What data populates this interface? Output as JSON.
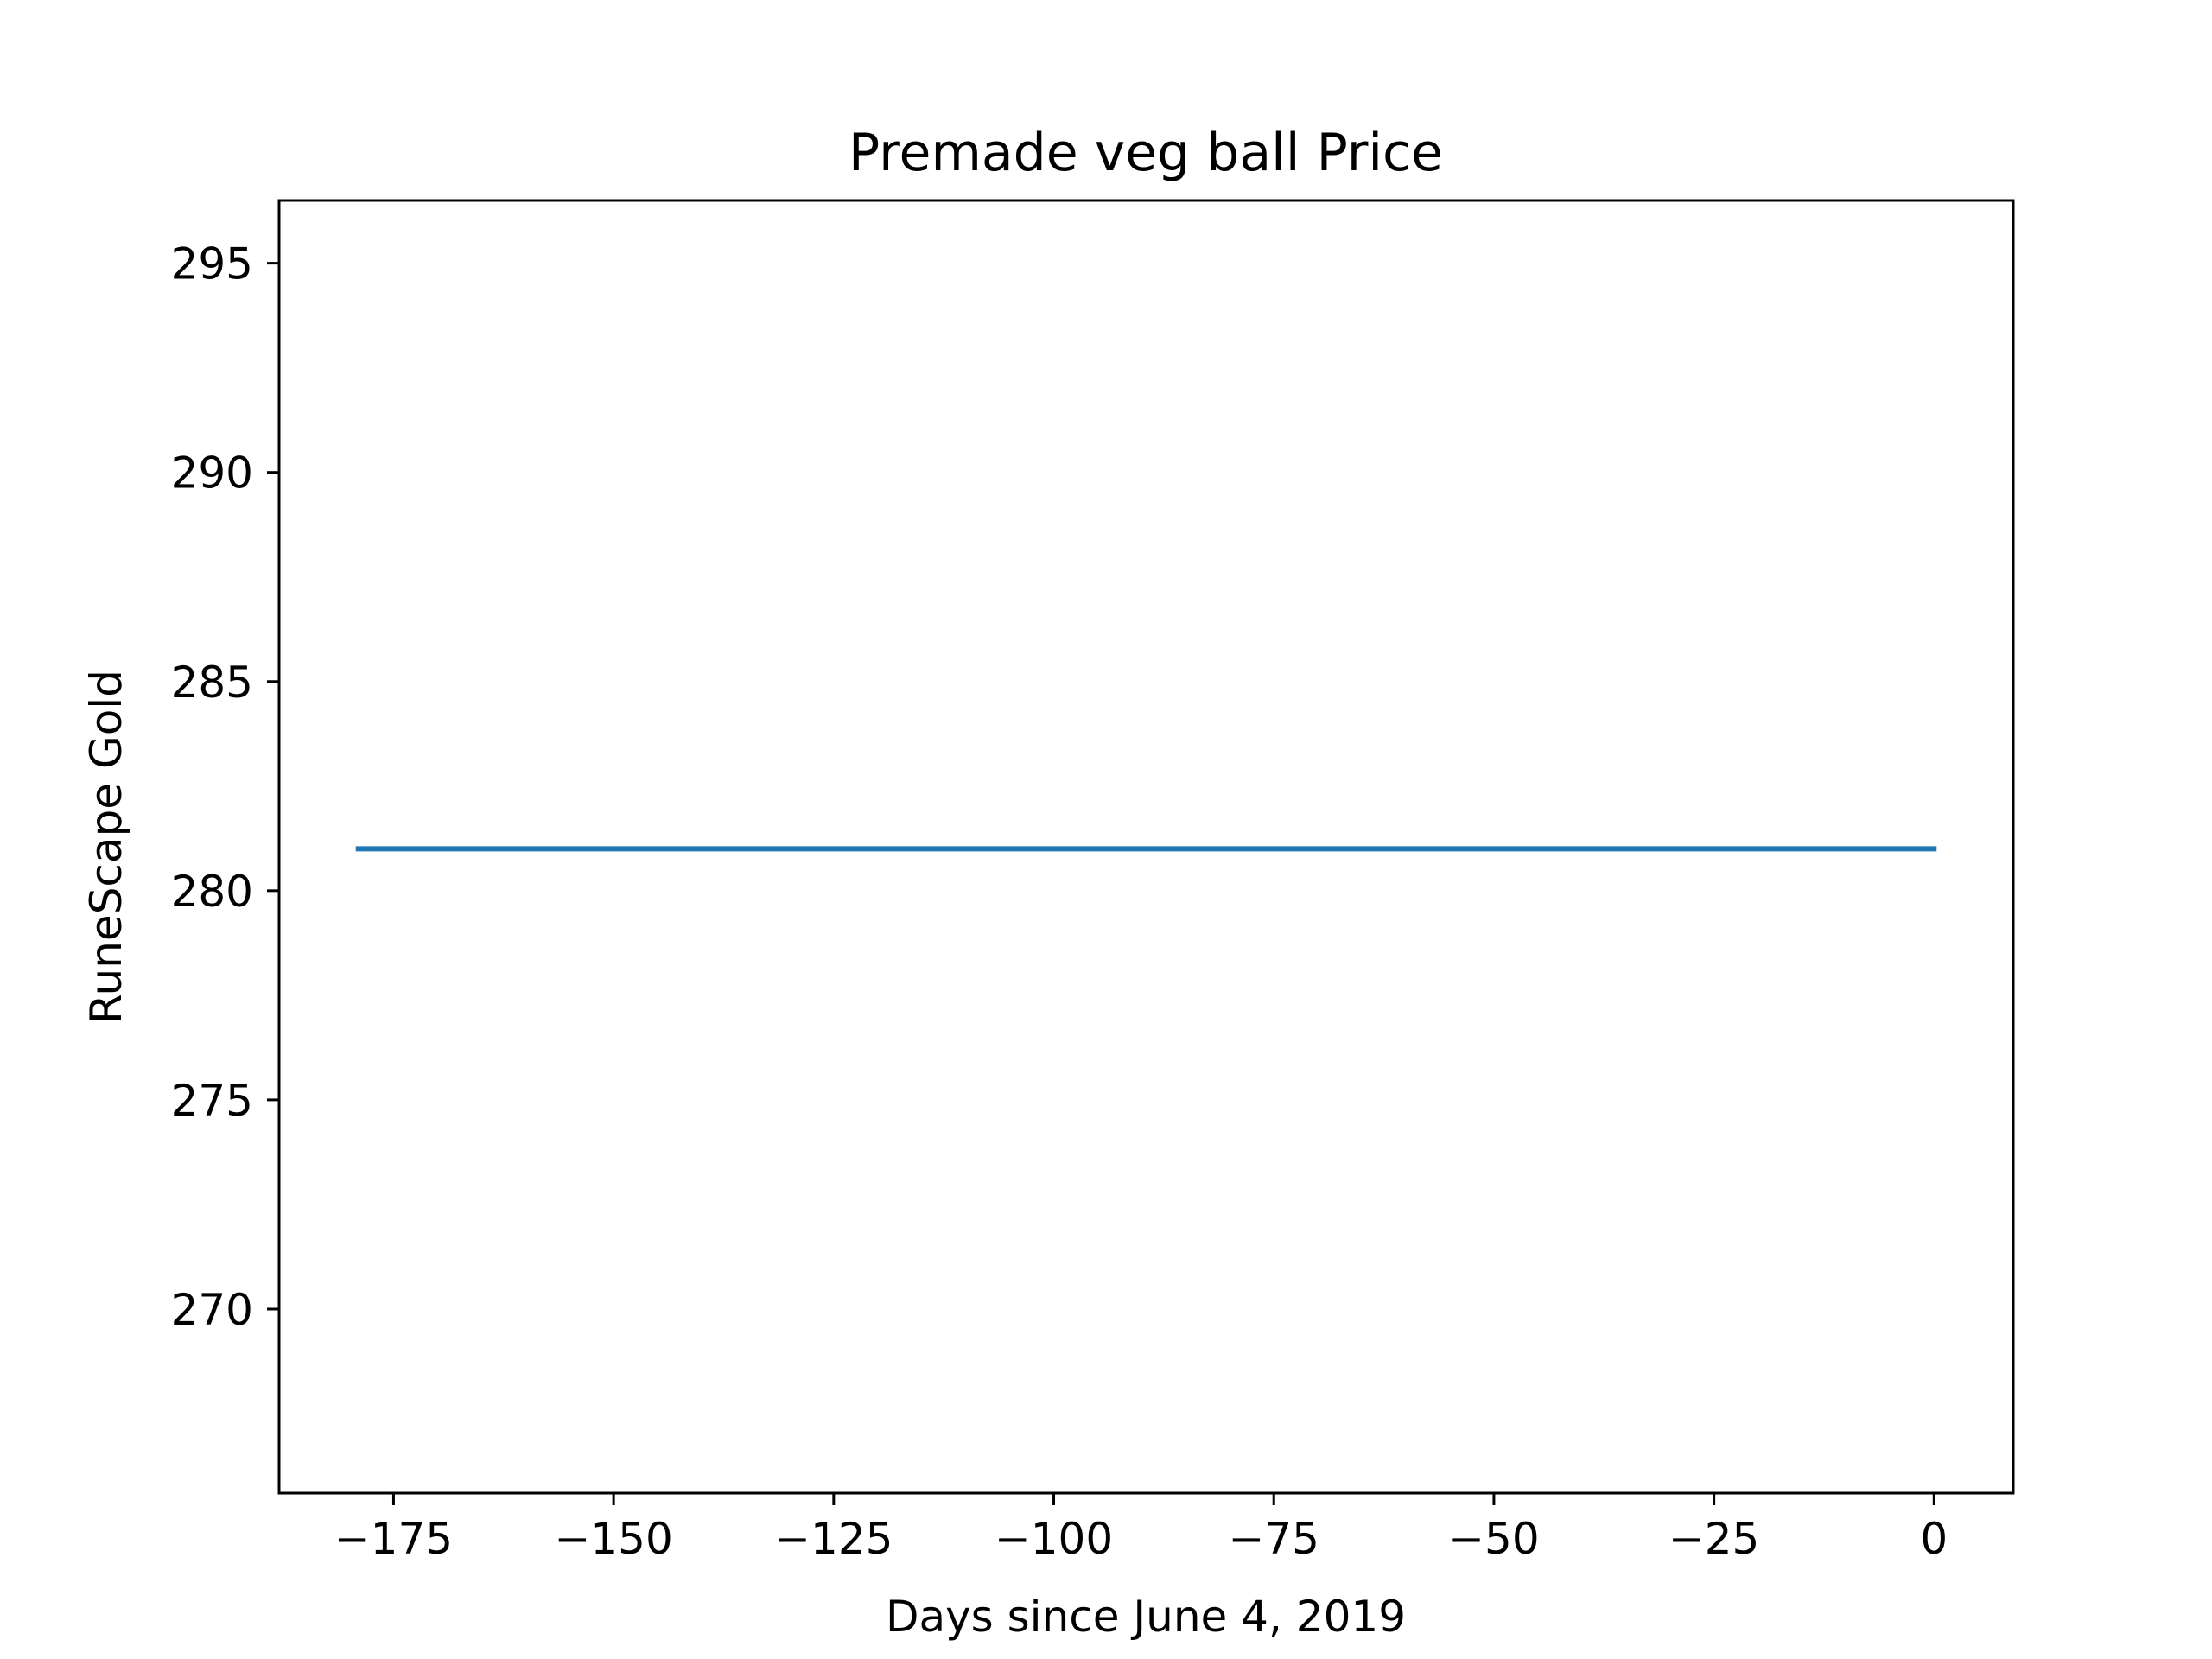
{
  "chart_data": {
    "type": "line",
    "title": "Premade veg ball Price",
    "xlabel": "Days since June 4, 2019",
    "ylabel": "RuneScape Gold",
    "xlim": [
      -188,
      9
    ],
    "ylim": [
      265.6,
      296.5
    ],
    "x_ticks": [
      -175,
      -150,
      -125,
      -100,
      -75,
      -50,
      -25,
      0
    ],
    "x_tick_labels": [
      "−175",
      "−150",
      "−125",
      "−100",
      "−75",
      "−50",
      "−25",
      "0"
    ],
    "y_ticks": [
      270,
      275,
      280,
      285,
      290,
      295
    ],
    "y_tick_labels": [
      "270",
      "275",
      "280",
      "285",
      "290",
      "295"
    ],
    "grid": false,
    "series": [
      {
        "color": "#1f77b4",
        "x": [
          -179,
          0
        ],
        "y": [
          281,
          281
        ]
      }
    ]
  }
}
